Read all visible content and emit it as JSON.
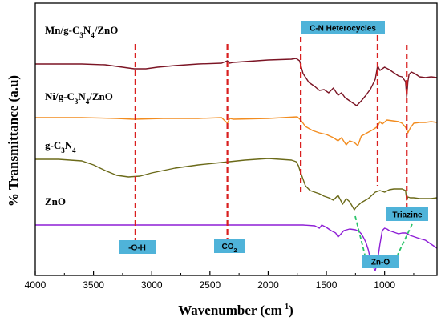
{
  "chart_data": {
    "type": "line",
    "xlabel": "Wavenumber (cm",
    "xlabel_sup": "-1",
    "xlabel_tail": ")",
    "ylabel": "% Transmittance (a.u)",
    "xlim": [
      4000,
      550
    ],
    "x_reversed": true,
    "x_ticks": [
      4000,
      3500,
      3000,
      2500,
      2000,
      1500,
      1000
    ],
    "grid": false,
    "series": [
      {
        "name": "Mn/g-C3N4/ZnO",
        "name_parts": [
          [
            "Mn/g-C",
            ""
          ],
          [
            "3",
            "sub"
          ],
          [
            "N",
            ""
          ],
          [
            "4",
            "sub"
          ],
          [
            "/ZnO",
            ""
          ]
        ],
        "color": "#7b1424",
        "x": [
          4000,
          3800,
          3600,
          3400,
          3250,
          3150,
          3050,
          2950,
          2800,
          2600,
          2400,
          2350,
          2330,
          2300,
          2200,
          2000,
          1800,
          1760,
          1730,
          1700,
          1650,
          1600,
          1560,
          1520,
          1480,
          1440,
          1400,
          1370,
          1340,
          1300,
          1260,
          1240,
          1200,
          1160,
          1120,
          1080,
          1060,
          1040,
          1000,
          960,
          920,
          880,
          850,
          820,
          810,
          800,
          790,
          770,
          740,
          700,
          650,
          600,
          550
        ],
        "y": [
          80,
          80,
          80,
          81,
          84,
          86,
          86,
          84,
          82,
          80,
          79,
          76,
          79,
          78,
          77,
          75,
          74,
          73,
          76,
          92,
          103,
          108,
          113,
          112,
          116,
          110,
          119,
          116,
          122,
          126,
          130,
          132,
          126,
          119,
          111,
          99,
          82,
          88,
          84,
          87,
          91,
          95,
          96,
          102,
          122,
          102,
          93,
          90,
          92,
          96,
          97,
          96,
          97
        ]
      },
      {
        "name": "Ni/g-C3N4/ZnO",
        "name_parts": [
          [
            "Ni/g-C",
            ""
          ],
          [
            "3",
            "sub"
          ],
          [
            "N",
            ""
          ],
          [
            "4",
            "sub"
          ],
          [
            "/ZnO",
            ""
          ]
        ],
        "color": "#f28c1f",
        "x": [
          4000,
          3600,
          3300,
          3150,
          2900,
          2600,
          2400,
          2350,
          2330,
          2300,
          2000,
          1750,
          1720,
          1680,
          1620,
          1560,
          1500,
          1440,
          1400,
          1370,
          1330,
          1300,
          1260,
          1230,
          1200,
          1150,
          1100,
          1060,
          1040,
          1020,
          980,
          930,
          880,
          850,
          820,
          800,
          780,
          750,
          700,
          650,
          600,
          550
        ],
        "y": [
          147,
          147,
          148,
          149,
          148,
          148,
          147,
          154,
          148,
          149,
          148,
          146,
          150,
          158,
          163,
          166,
          168,
          172,
          176,
          172,
          181,
          176,
          178,
          182,
          170,
          166,
          162,
          158,
          152,
          155,
          150,
          151,
          152,
          154,
          159,
          166,
          160,
          154,
          153,
          153,
          152,
          153
        ]
      },
      {
        "name": "g-C3N4",
        "name_parts": [
          [
            "g-C",
            ""
          ],
          [
            "3",
            "sub"
          ],
          [
            "N",
            ""
          ],
          [
            "4",
            "sub"
          ]
        ],
        "color": "#6b6a19",
        "x": [
          4000,
          3800,
          3600,
          3500,
          3400,
          3300,
          3200,
          3100,
          3000,
          2800,
          2600,
          2400,
          2200,
          2000,
          1800,
          1760,
          1740,
          1720,
          1700,
          1680,
          1640,
          1600,
          1560,
          1520,
          1480,
          1440,
          1400,
          1360,
          1330,
          1300,
          1260,
          1240,
          1200,
          1140,
          1080,
          1040,
          1000,
          960,
          920,
          880,
          850,
          820,
          810,
          800,
          780,
          750,
          700,
          650,
          600,
          550
        ],
        "y": [
          199,
          199,
          201,
          206,
          213,
          219,
          221,
          220,
          216,
          210,
          206,
          203,
          200,
          198,
          200,
          202,
          207,
          216,
          224,
          232,
          238,
          240,
          242,
          245,
          247,
          250,
          244,
          255,
          248,
          252,
          262,
          258,
          253,
          248,
          240,
          238,
          240,
          237,
          236,
          236,
          236,
          238,
          250,
          246,
          247,
          247,
          248,
          248,
          248,
          247
        ]
      },
      {
        "name": "ZnO",
        "name_parts": [
          [
            "ZnO",
            ""
          ]
        ],
        "color": "#8e1fd6",
        "x": [
          4000,
          3500,
          3000,
          2500,
          2000,
          1700,
          1600,
          1560,
          1540,
          1500,
          1460,
          1420,
          1400,
          1380,
          1350,
          1300,
          1250,
          1220,
          1200,
          1180,
          1160,
          1140,
          1120,
          1100,
          1080,
          1060,
          1040,
          1020,
          1000,
          980,
          960,
          920,
          880,
          850,
          820,
          780,
          740,
          700,
          650,
          600,
          550
        ],
        "y": [
          281,
          281,
          281,
          281,
          281,
          281,
          282,
          285,
          281,
          284,
          288,
          291,
          296,
          293,
          288,
          286,
          287,
          289,
          292,
          297,
          303,
          312,
          325,
          333,
          338,
          325,
          305,
          288,
          285,
          286,
          288,
          290,
          292,
          291,
          291,
          294,
          296,
          298,
          300,
          305,
          310
        ]
      }
    ],
    "markers": [
      {
        "wavenumber": 3140,
        "label": "-O-H",
        "label_parts": [
          [
            "-O-H",
            ""
          ]
        ]
      },
      {
        "wavenumber": 2350,
        "label": "CO2",
        "label_parts": [
          [
            "CO",
            ""
          ],
          [
            "2",
            "sub"
          ]
        ]
      },
      {
        "wavenumber": 1720,
        "label": "C-N Heterocycles",
        "label_parts": [
          [
            "C-N Heterocycles",
            ""
          ]
        ]
      },
      {
        "wavenumber": 1060,
        "label": "",
        "label_parts": []
      },
      {
        "wavenumber": 810,
        "label": "Triazine",
        "label_parts": [
          [
            "Triazine",
            ""
          ]
        ]
      }
    ],
    "zno_annotation": {
      "label": "Zn-O",
      "label_parts": [
        [
          "Zn-O",
          ""
        ]
      ]
    }
  }
}
